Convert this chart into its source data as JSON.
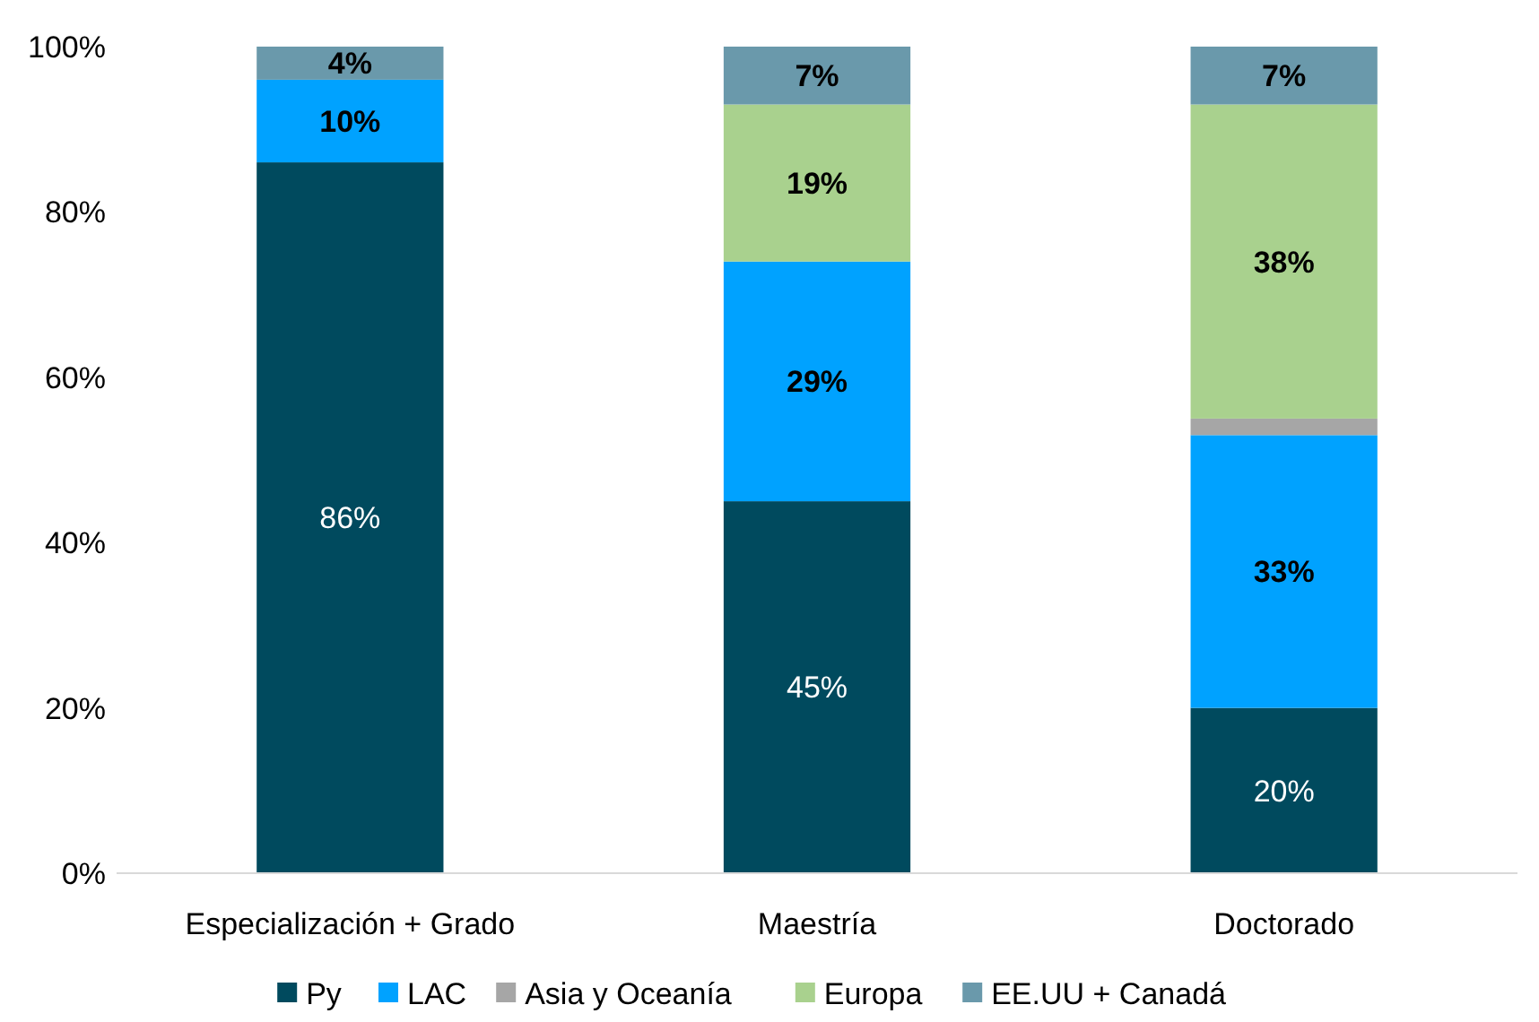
{
  "chart_data": {
    "type": "bar",
    "stacked": true,
    "categories": [
      "Especialización + Grado",
      "Maestría",
      "Doctorado"
    ],
    "series": [
      {
        "name": "Py",
        "color": "#004a5e",
        "values": [
          86,
          45,
          20
        ],
        "value_labels": [
          "86%",
          "45%",
          "20%"
        ]
      },
      {
        "name": "LAC",
        "color": "#00a2ff",
        "values": [
          10,
          29,
          33
        ],
        "value_labels": [
          "10%",
          "29%",
          "33%"
        ]
      },
      {
        "name": "Asia y Oceanía",
        "color": "#a6a6a6",
        "values": [
          0,
          0,
          2
        ],
        "value_labels": [
          null,
          null,
          null
        ]
      },
      {
        "name": "Europa",
        "color": "#a9d18e",
        "values": [
          0,
          19,
          38
        ],
        "value_labels": [
          null,
          "19%",
          "38%"
        ]
      },
      {
        "name": "EE.UU + Canadá",
        "color": "#6a99ab",
        "values": [
          4,
          7,
          7
        ],
        "value_labels": [
          "4%",
          "7%",
          "7%"
        ]
      }
    ],
    "ylim": [
      0,
      100
    ],
    "yticks": [
      {
        "value": 0,
        "label": "0%"
      },
      {
        "value": 20,
        "label": "20%"
      },
      {
        "value": 40,
        "label": "40%"
      },
      {
        "value": 60,
        "label": "60%"
      },
      {
        "value": 80,
        "label": "80%"
      },
      {
        "value": 100,
        "label": "100%"
      }
    ],
    "grid": false,
    "legend": "bottom"
  }
}
